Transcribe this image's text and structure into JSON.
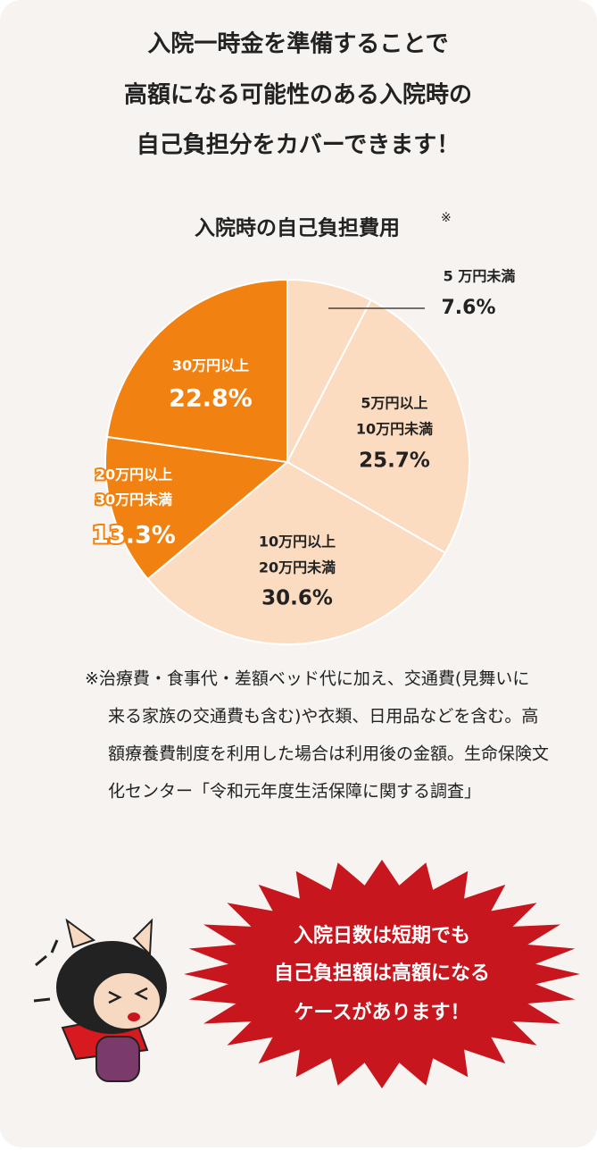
{
  "header": {
    "lines": [
      "入院一時金を準備することで",
      "高額になる可能性のある入院時の",
      "自己負担分をカバーできます！"
    ]
  },
  "chart_data": {
    "type": "pie",
    "title": "入院時の自己負担費用",
    "title_mark": "※",
    "categories": [
      [
        "5 万円未満"
      ],
      [
        "5万円以上",
        "10万円未満"
      ],
      [
        "10万円以上",
        "20万円未満"
      ],
      [
        "20万円以上",
        "30万円未満"
      ],
      [
        "30万円以上"
      ]
    ],
    "values": [
      7.6,
      25.7,
      30.6,
      13.3,
      22.8
    ],
    "value_labels": [
      "7.6%",
      "25.7%",
      "30.6%",
      "13.3%",
      "22.8%"
    ],
    "colors": [
      "#fbdcc0",
      "#fbdcc0",
      "#fbdcc0",
      "#f18211",
      "#f18211"
    ]
  },
  "note": {
    "lines": [
      "※治療費・食事代・差額ベッド代に加え、交通費(見舞いに",
      "来る家族の交通費も含む)や衣類、日用品などを含む。高",
      "額療養費制度を利用した場合は利用後の金額。生命保険文",
      "化センター「令和元年度生活保障に関する調査」"
    ]
  },
  "badge": {
    "lines": [
      "入院日数は短期でも",
      "自己負担額は高額になる",
      "ケースがあります！"
    ]
  }
}
